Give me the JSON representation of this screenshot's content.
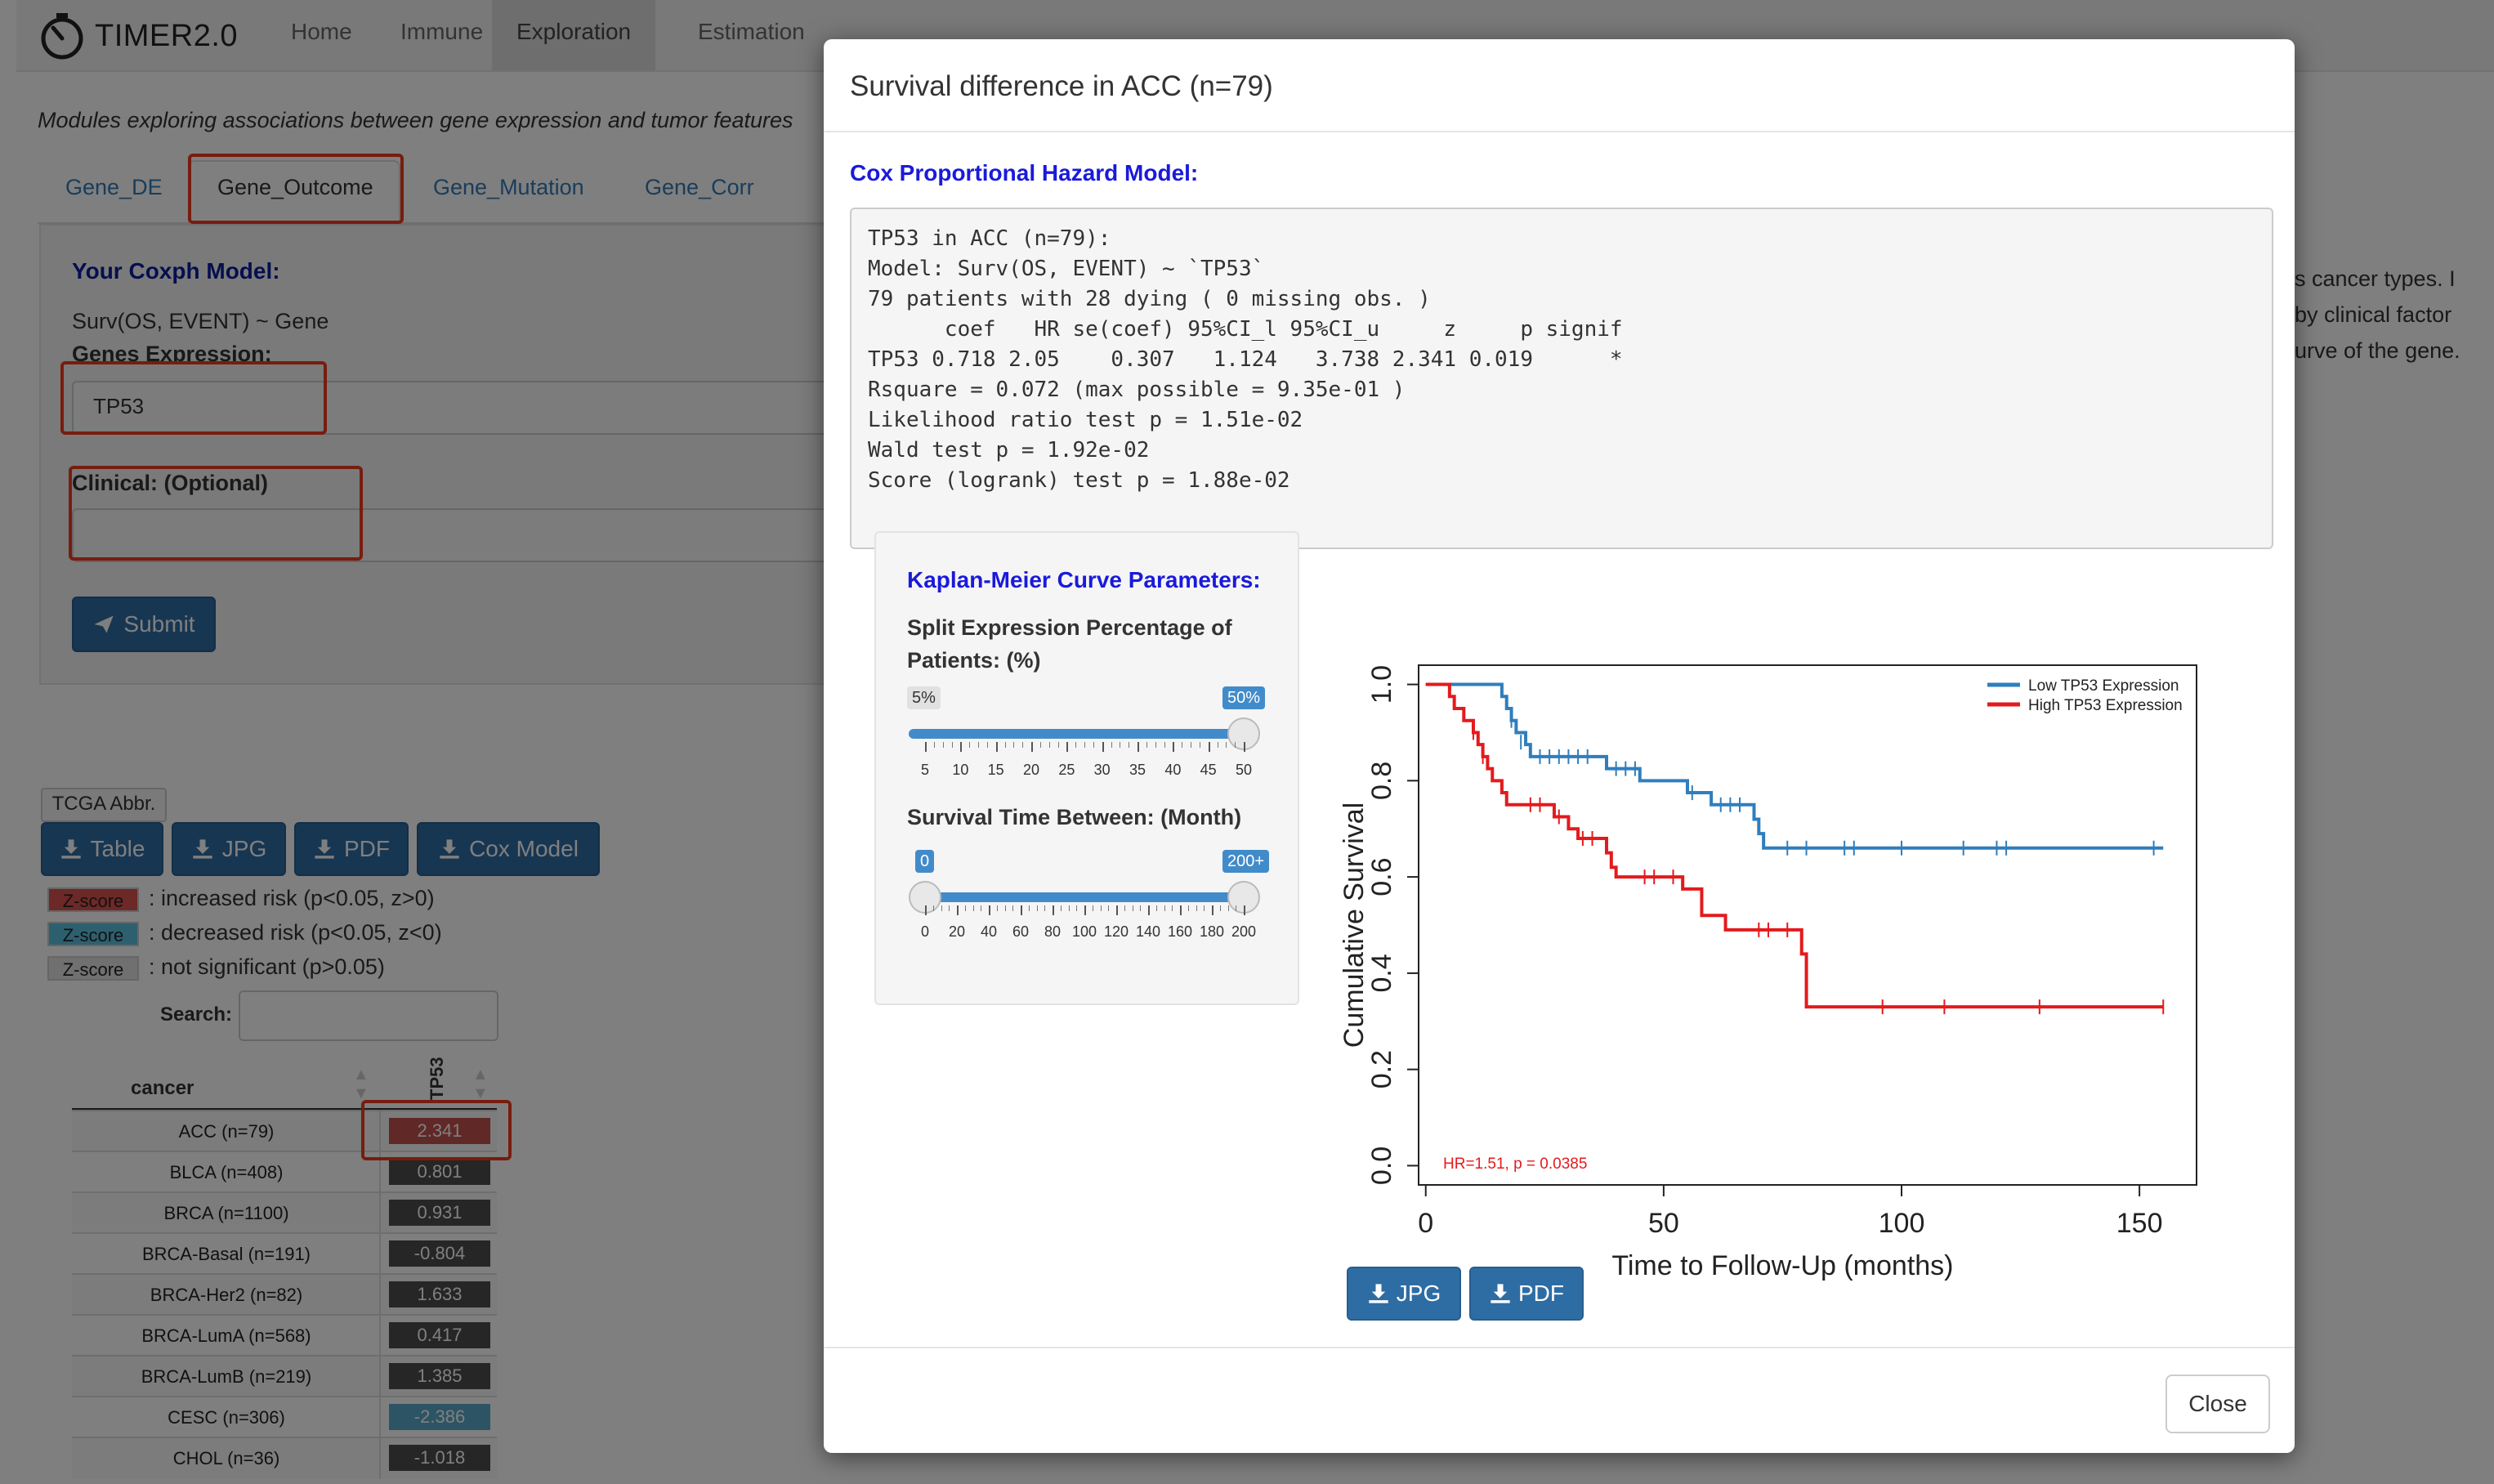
{
  "app": {
    "brand": "TIMER2.0",
    "nav": [
      "Home",
      "Immune",
      "Exploration",
      "Estimation"
    ],
    "active_nav": "Exploration",
    "subtitle": "Modules exploring associations between gene expression and tumor features",
    "tabs": [
      "Gene_DE",
      "Gene_Outcome",
      "Gene_Mutation",
      "Gene_Corr"
    ],
    "active_tab": "Gene_Outcome"
  },
  "form": {
    "coxph_title": "Your Coxph Model:",
    "formula": "Surv(OS, EVENT) ~ Gene",
    "genes_label": "Genes Expression:",
    "gene_value": "TP53",
    "clinical_label": "Clinical: (Optional)",
    "clinical_value": "",
    "submit": "Submit"
  },
  "right_text": [
    "s cancer types. I",
    "by clinical factor",
    "urve of the gene."
  ],
  "results": {
    "abbr_label": "TCGA Abbr.",
    "buttons": [
      "Table",
      "JPG",
      "PDF",
      "Cox Model"
    ],
    "legend": [
      {
        "chip": "Z-score",
        "color": "#d9534f",
        "text": ": increased risk (p<0.05, z>0)"
      },
      {
        "chip": "Z-score",
        "color": "#5bc0de",
        "text": ": decreased risk (p<0.05, z<0)"
      },
      {
        "chip": "Z-score",
        "color": "#e0e0e0",
        "text": ": not significant (p>0.05)"
      }
    ],
    "search_label": "Search:",
    "search_value": "",
    "col_cancer": "cancer",
    "col_gene": "TP53",
    "rows": [
      {
        "cancer": "ACC (n=79)",
        "value": "2.341",
        "color": "#c0504d"
      },
      {
        "cancer": "BLCA (n=408)",
        "value": "0.801",
        "color": "#4d4d4d"
      },
      {
        "cancer": "BRCA (n=1100)",
        "value": "0.931",
        "color": "#4d4d4d"
      },
      {
        "cancer": "BRCA-Basal (n=191)",
        "value": "-0.804",
        "color": "#4d4d4d"
      },
      {
        "cancer": "BRCA-Her2 (n=82)",
        "value": "1.633",
        "color": "#4d4d4d"
      },
      {
        "cancer": "BRCA-LumA (n=568)",
        "value": "0.417",
        "color": "#4d4d4d"
      },
      {
        "cancer": "BRCA-LumB (n=219)",
        "value": "1.385",
        "color": "#4d4d4d"
      },
      {
        "cancer": "CESC (n=306)",
        "value": "-2.386",
        "color": "#5aa9c9"
      },
      {
        "cancer": "CHOL (n=36)",
        "value": "-1.018",
        "color": "#4d4d4d"
      }
    ]
  },
  "modal": {
    "title": "Survival difference in ACC (n=79)",
    "cox_title": "Cox Proportional Hazard Model:",
    "cox_output": [
      "TP53 in ACC (n=79):",
      "Model: Surv(OS, EVENT) ~ `TP53`",
      "79 patients with 28 dying ( 0 missing obs. )",
      "      coef   HR se(coef) 95%CI_l 95%CI_u     z     p signif",
      "TP53 0.718 2.05    0.307   1.124   3.738 2.341 0.019      *",
      "Rsquare = 0.072 (max possible = 9.35e-01 )",
      "Likelihood ratio test p = 1.51e-02",
      "Wald test p = 1.92e-02",
      "Score (logrank) test p = 1.88e-02"
    ],
    "km_params_title": "Kaplan-Meier Curve Parameters:",
    "split_label": "Split Expression Percentage of Patients: (%)",
    "split_min_chip": "5%",
    "split_max_chip": "50%",
    "split_ticks": [
      "5",
      "10",
      "15",
      "20",
      "25",
      "30",
      "35",
      "40",
      "45",
      "50"
    ],
    "time_label": "Survival Time Between: (Month)",
    "time_min_chip": "0",
    "time_max_chip": "200+",
    "time_ticks": [
      "0",
      "20",
      "40",
      "60",
      "80",
      "100",
      "120",
      "140",
      "160",
      "180",
      "200"
    ],
    "download_jpg": "JPG",
    "download_pdf": "PDF",
    "close": "Close"
  },
  "chart_data": {
    "type": "line",
    "title": "",
    "xlabel": "Time to Follow-Up (months)",
    "ylabel": "Cumulative Survival",
    "xlim": [
      0,
      160
    ],
    "ylim": [
      0,
      1
    ],
    "xticks": [
      "0",
      "50",
      "100",
      "150"
    ],
    "yticks": [
      "0.0",
      "0.2",
      "0.4",
      "0.6",
      "0.8",
      "1.0"
    ],
    "legend_position": "top-right",
    "annotation": "HR=1.51, p = 0.0385",
    "series": [
      {
        "name": "Low TP53 Expression",
        "color": "#2f7ebd",
        "steps": [
          [
            0,
            1.0
          ],
          [
            16,
            1.0
          ],
          [
            16,
            0.975
          ],
          [
            17,
            0.95
          ],
          [
            18,
            0.925
          ],
          [
            19,
            0.9
          ],
          [
            21,
            0.875
          ],
          [
            22,
            0.85
          ],
          [
            38,
            0.85
          ],
          [
            38,
            0.825
          ],
          [
            45,
            0.825
          ],
          [
            45,
            0.8
          ],
          [
            55,
            0.8
          ],
          [
            55,
            0.775
          ],
          [
            60,
            0.775
          ],
          [
            60,
            0.75
          ],
          [
            69,
            0.75
          ],
          [
            69,
            0.72
          ],
          [
            70,
            0.69
          ],
          [
            71,
            0.66
          ],
          [
            155,
            0.66
          ]
        ],
        "censors": [
          [
            18,
            0.925
          ],
          [
            20,
            0.88
          ],
          [
            24,
            0.85
          ],
          [
            26,
            0.85
          ],
          [
            28,
            0.85
          ],
          [
            30,
            0.85
          ],
          [
            32,
            0.85
          ],
          [
            34,
            0.85
          ],
          [
            40,
            0.825
          ],
          [
            42,
            0.825
          ],
          [
            44,
            0.825
          ],
          [
            56,
            0.775
          ],
          [
            62,
            0.75
          ],
          [
            64,
            0.75
          ],
          [
            66,
            0.75
          ],
          [
            76,
            0.66
          ],
          [
            80,
            0.66
          ],
          [
            88,
            0.66
          ],
          [
            90,
            0.66
          ],
          [
            100,
            0.66
          ],
          [
            113,
            0.66
          ],
          [
            120,
            0.66
          ],
          [
            122,
            0.66
          ],
          [
            153,
            0.66
          ]
        ]
      },
      {
        "name": "High TP53 Expression",
        "color": "#e41a1c",
        "steps": [
          [
            0,
            1.0
          ],
          [
            5,
            1.0
          ],
          [
            5,
            0.975
          ],
          [
            6,
            0.95
          ],
          [
            8,
            0.925
          ],
          [
            10,
            0.9
          ],
          [
            11,
            0.875
          ],
          [
            12,
            0.85
          ],
          [
            13,
            0.825
          ],
          [
            14,
            0.8
          ],
          [
            16,
            0.775
          ],
          [
            17,
            0.75
          ],
          [
            27,
            0.75
          ],
          [
            27,
            0.725
          ],
          [
            30,
            0.7
          ],
          [
            32,
            0.68
          ],
          [
            38,
            0.68
          ],
          [
            38,
            0.65
          ],
          [
            39,
            0.62
          ],
          [
            40,
            0.6
          ],
          [
            54,
            0.6
          ],
          [
            54,
            0.575
          ],
          [
            58,
            0.55
          ],
          [
            58,
            0.52
          ],
          [
            63,
            0.52
          ],
          [
            63,
            0.49
          ],
          [
            79,
            0.49
          ],
          [
            79,
            0.44
          ],
          [
            80,
            0.39
          ],
          [
            80,
            0.33
          ],
          [
            155,
            0.33
          ]
        ],
        "censors": [
          [
            10,
            0.9
          ],
          [
            12,
            0.85
          ],
          [
            22,
            0.75
          ],
          [
            24,
            0.75
          ],
          [
            28,
            0.725
          ],
          [
            33,
            0.68
          ],
          [
            35,
            0.68
          ],
          [
            46,
            0.6
          ],
          [
            48,
            0.6
          ],
          [
            52,
            0.6
          ],
          [
            70,
            0.49
          ],
          [
            72,
            0.49
          ],
          [
            76,
            0.49
          ],
          [
            96,
            0.33
          ],
          [
            109,
            0.33
          ],
          [
            129,
            0.33
          ],
          [
            155,
            0.33
          ]
        ]
      }
    ]
  }
}
